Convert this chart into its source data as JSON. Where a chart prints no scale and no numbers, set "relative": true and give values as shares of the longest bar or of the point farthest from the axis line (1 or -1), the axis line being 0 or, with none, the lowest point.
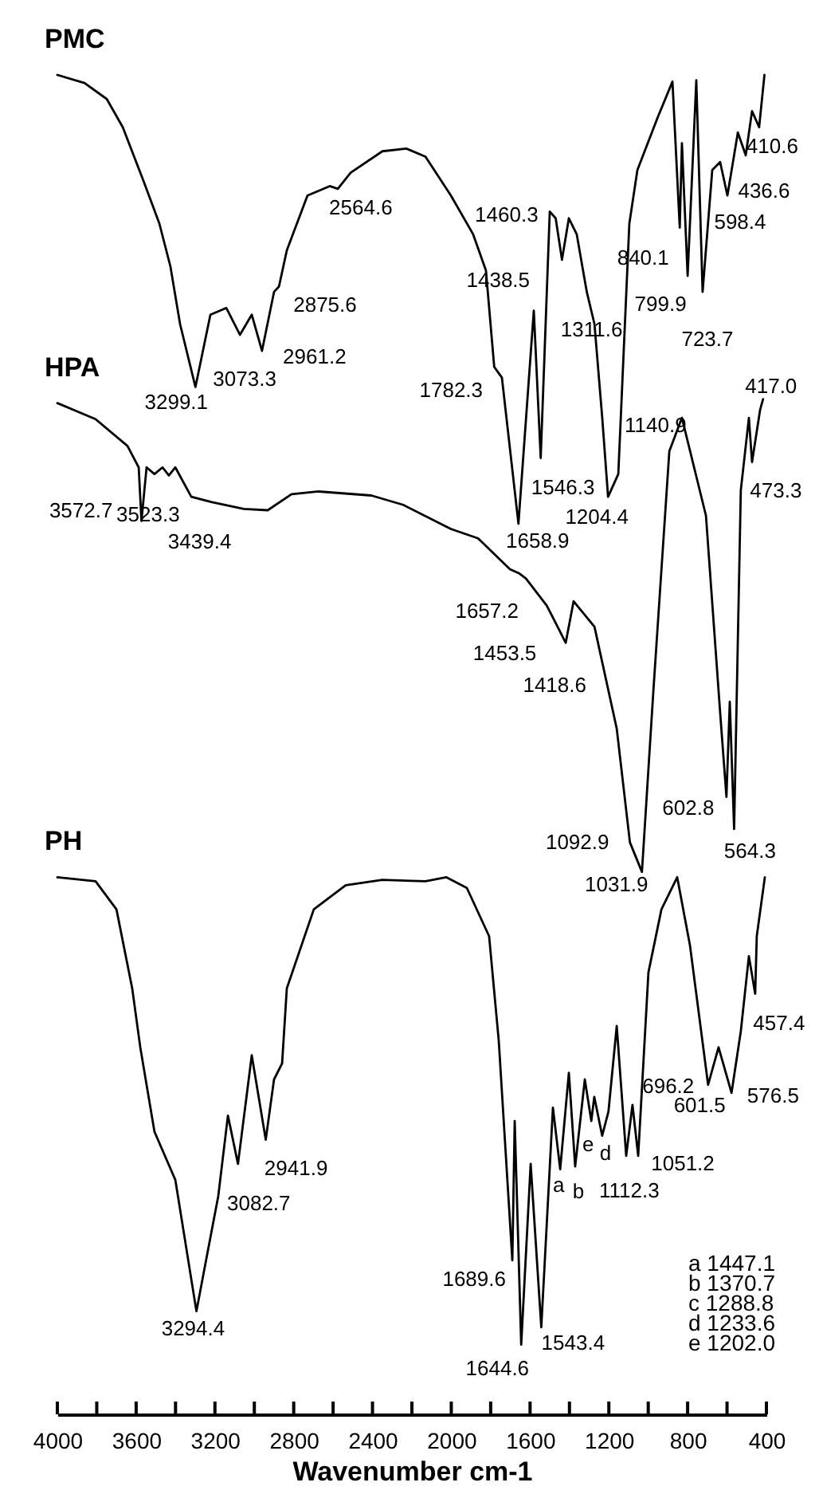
{
  "chart_data": {
    "type": "line",
    "xlabel": "Wavenumber cm-1",
    "relative": true,
    "legend": false,
    "grid": false,
    "line_style": "solid",
    "marker": "none",
    "xlim": [
      4000,
      400
    ],
    "xticks": [
      4000,
      {
        "value": 3800,
        "label": null
      },
      3600,
      {
        "value": 3400,
        "label": null
      },
      3200,
      {
        "value": 3000,
        "label": null
      },
      2800,
      {
        "value": 2600,
        "label": null
      },
      2400,
      {
        "value": 2200,
        "label": null
      },
      2000,
      {
        "value": 1800,
        "label": null
      },
      1600,
      {
        "value": 1400,
        "label": null
      },
      1200,
      {
        "value": 1000,
        "label": null
      },
      800,
      {
        "value": 600,
        "label": null
      },
      400
    ],
    "series": [
      {
        "name": "PMC",
        "color": "#000000",
        "x": [
          4000,
          3862,
          3749,
          3668,
          3563,
          3482,
          3426,
          3377,
          3299,
          3223,
          3142,
          3073,
          3013,
          2961,
          2900,
          2875,
          2835,
          2730,
          2617,
          2576,
          2511,
          2350,
          2228,
          2131,
          2002,
          1889,
          1824,
          1782,
          1743,
          1659,
          1581,
          1546,
          1500,
          1470,
          1438,
          1403,
          1363,
          1312,
          1273,
          1233,
          1204,
          1152,
          1096,
          1055,
          950,
          877,
          840,
          829,
          800,
          756,
          724,
          675,
          635,
          598,
          545,
          505,
          473,
          437,
          410
        ],
        "values": [
          1.0,
          0.994,
          0.982,
          0.961,
          0.921,
          0.889,
          0.857,
          0.814,
          0.767,
          0.821,
          0.826,
          0.806,
          0.821,
          0.794,
          0.838,
          0.842,
          0.869,
          0.91,
          0.917,
          0.915,
          0.927,
          0.943,
          0.945,
          0.939,
          0.91,
          0.881,
          0.854,
          0.782,
          0.774,
          0.665,
          0.824,
          0.714,
          0.898,
          0.893,
          0.862,
          0.893,
          0.881,
          0.838,
          0.814,
          0.743,
          0.685,
          0.702,
          0.889,
          0.929,
          0.969,
          0.995,
          0.886,
          0.949,
          0.85,
          0.996,
          0.838,
          0.929,
          0.935,
          0.91,
          0.957,
          0.94,
          0.973,
          0.961,
          1.0
        ]
      },
      {
        "name": "HPA",
        "color": "#000000",
        "x": [
          4000,
          3806,
          3644,
          3587,
          3573,
          3547,
          3507,
          3466,
          3434,
          3401,
          3320,
          3215,
          3053,
          2932,
          2811,
          2673,
          2406,
          2244,
          2002,
          1864,
          1702,
          1657,
          1621,
          1516,
          1453,
          1419,
          1379,
          1273,
          1160,
          1093,
          1032,
          974,
          893,
          829,
          707,
          635,
          603,
          586,
          564,
          530,
          489,
          473,
          432,
          417
        ],
        "values": [
          0.755,
          0.743,
          0.723,
          0.707,
          0.667,
          0.707,
          0.702,
          0.707,
          0.701,
          0.707,
          0.685,
          0.681,
          0.676,
          0.675,
          0.687,
          0.689,
          0.686,
          0.679,
          0.661,
          0.654,
          0.631,
          0.628,
          0.624,
          0.604,
          0.586,
          0.576,
          0.607,
          0.588,
          0.512,
          0.427,
          0.405,
          0.54,
          0.719,
          0.744,
          0.671,
          0.524,
          0.461,
          0.532,
          0.437,
          0.69,
          0.744,
          0.711,
          0.75,
          0.758
        ]
      },
      {
        "name": "PH",
        "color": "#000000",
        "x": [
          4000,
          3806,
          3700,
          3620,
          3579,
          3507,
          3401,
          3294,
          3183,
          3134,
          3083,
          3013,
          2942,
          2900,
          2859,
          2835,
          2698,
          2536,
          2350,
          2131,
          2026,
          1921,
          1808,
          1759,
          1690,
          1678,
          1645,
          1597,
          1543,
          1484,
          1447,
          1403,
          1371,
          1322,
          1289,
          1274,
          1234,
          1202,
          1160,
          1112,
          1080,
          1051,
          999,
          933,
          853,
          788,
          696,
          643,
          577,
          530,
          489,
          457,
          449,
          408
        ],
        "values": [
          0.401,
          0.398,
          0.377,
          0.318,
          0.274,
          0.211,
          0.175,
          0.077,
          0.163,
          0.223,
          0.187,
          0.268,
          0.205,
          0.25,
          0.262,
          0.318,
          0.377,
          0.395,
          0.399,
          0.398,
          0.401,
          0.393,
          0.357,
          0.279,
          0.115,
          0.219,
          0.052,
          0.187,
          0.065,
          0.229,
          0.183,
          0.255,
          0.185,
          0.25,
          0.219,
          0.237,
          0.208,
          0.226,
          0.29,
          0.193,
          0.231,
          0.193,
          0.33,
          0.377,
          0.401,
          0.35,
          0.246,
          0.274,
          0.24,
          0.286,
          0.342,
          0.314,
          0.357,
          0.401
        ]
      }
    ],
    "annotations": [
      {
        "text": "3299.1",
        "x": 3299.1,
        "y": 0.767
      },
      {
        "text": "3073.3",
        "x": 3073.3,
        "y": 0.806
      },
      {
        "text": "2961.2",
        "x": 2961.2,
        "y": 0.794
      },
      {
        "text": "2875.6",
        "x": 2875.6,
        "y": 0.842
      },
      {
        "text": "2564.6",
        "x": 2564.6,
        "y": 0.917
      },
      {
        "text": "1460.3",
        "x": 1460.3,
        "y": 0.893
      },
      {
        "text": "1438.5",
        "x": 1438.5,
        "y": 0.862
      },
      {
        "text": "1782.3",
        "x": 1782.3,
        "y": 0.782
      },
      {
        "text": "1658.9",
        "x": 1658.9,
        "y": 0.665
      },
      {
        "text": "1546.3",
        "x": 1546.3,
        "y": 0.714
      },
      {
        "text": "1311.6",
        "x": 1311.6,
        "y": 0.838
      },
      {
        "text": "1204.4",
        "x": 1204.4,
        "y": 0.685
      },
      {
        "text": "1140.9",
        "x": 1140.9,
        "y": 0.7
      },
      {
        "text": "840.1",
        "x": 840.1,
        "y": 0.886
      },
      {
        "text": "799.9",
        "x": 799.9,
        "y": 0.85
      },
      {
        "text": "723.7",
        "x": 723.7,
        "y": 0.838
      },
      {
        "text": "598.4",
        "x": 598.4,
        "y": 0.91
      },
      {
        "text": "436.6",
        "x": 436.6,
        "y": 0.961
      },
      {
        "text": "410.6",
        "x": 410.6,
        "y": 1.0
      },
      {
        "text": "417.0",
        "x": 417.0,
        "y": 0.758
      },
      {
        "text": "473.3",
        "x": 473.3,
        "y": 0.711
      },
      {
        "text": "3572.7",
        "x": 3572.7,
        "y": 0.667
      },
      {
        "text": "3523.3",
        "x": 3523.3,
        "y": 0.705
      },
      {
        "text": "3439.4",
        "x": 3439.4,
        "y": 0.7
      },
      {
        "text": "1657.2",
        "x": 1657.2,
        "y": 0.628
      },
      {
        "text": "1453.5",
        "x": 1453.5,
        "y": 0.586
      },
      {
        "text": "1418.6",
        "x": 1418.6,
        "y": 0.576
      },
      {
        "text": "1092.9",
        "x": 1092.9,
        "y": 0.427
      },
      {
        "text": "1031.9",
        "x": 1031.9,
        "y": 0.405
      },
      {
        "text": "602.8",
        "x": 602.8,
        "y": 0.461
      },
      {
        "text": "564.3",
        "x": 564.3,
        "y": 0.437
      },
      {
        "text": "3294.4",
        "x": 3294.4,
        "y": 0.077
      },
      {
        "text": "3082.7",
        "x": 3082.7,
        "y": 0.187
      },
      {
        "text": "2941.9",
        "x": 2941.9,
        "y": 0.205
      },
      {
        "text": "1689.6",
        "x": 1689.6,
        "y": 0.115
      },
      {
        "text": "1644.6",
        "x": 1644.6,
        "y": 0.052
      },
      {
        "text": "1543.4",
        "x": 1543.4,
        "y": 0.065
      },
      {
        "text": "a",
        "x": 1447.1,
        "y": 0.183
      },
      {
        "text": "b",
        "x": 1370.7,
        "y": 0.185
      },
      {
        "text": "e",
        "x": 1288.8,
        "y": 0.219
      },
      {
        "text": "d",
        "x": 1233.6,
        "y": 0.208
      },
      {
        "text": "1112.3",
        "x": 1112.3,
        "y": 0.193
      },
      {
        "text": "1051.2",
        "x": 1051.2,
        "y": 0.193
      },
      {
        "text": "696.2",
        "x": 696.2,
        "y": 0.246
      },
      {
        "text": "601.5",
        "x": 601.5,
        "y": 0.26
      },
      {
        "text": "576.5",
        "x": 576.5,
        "y": 0.24
      },
      {
        "text": "457.4",
        "x": 457.4,
        "y": 0.314
      },
      "a 1447.1",
      "b 1370.7",
      "c 1288.8",
      "d 1233.6",
      "e 1202.0"
    ]
  }
}
